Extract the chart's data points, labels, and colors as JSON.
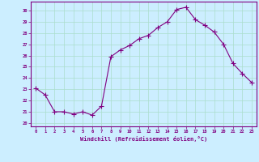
{
  "x": [
    0,
    1,
    2,
    3,
    4,
    5,
    6,
    7,
    8,
    9,
    10,
    11,
    12,
    13,
    14,
    15,
    16,
    17,
    18,
    19,
    20,
    21,
    22,
    23
  ],
  "y": [
    23.1,
    22.5,
    21.0,
    21.0,
    20.8,
    21.0,
    20.7,
    21.5,
    25.9,
    26.5,
    26.9,
    27.5,
    27.8,
    28.5,
    29.0,
    30.1,
    30.3,
    29.2,
    28.7,
    28.1,
    27.0,
    25.3,
    24.4,
    23.6
  ],
  "line_color": "#800080",
  "marker": "+",
  "markersize": 4,
  "linewidth": 0.8,
  "bg_color": "#cceeff",
  "grid_color": "#aaddcc",
  "xlabel": "Windchill (Refroidissement éolien,°C)",
  "xlabel_color": "#800080",
  "tick_color": "#800080",
  "ylabel_ticks": [
    20,
    21,
    22,
    23,
    24,
    25,
    26,
    27,
    28,
    29,
    30
  ],
  "xlim": [
    -0.5,
    23.5
  ],
  "ylim": [
    19.7,
    30.8
  ],
  "spine_color": "#800080"
}
